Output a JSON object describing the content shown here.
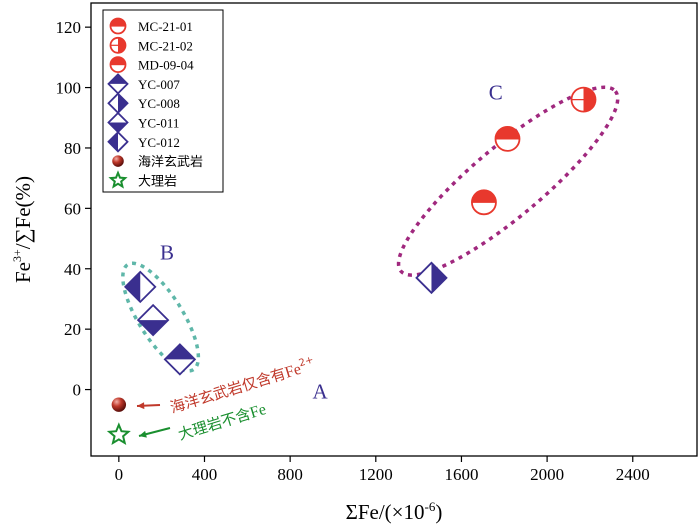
{
  "chart_data": {
    "type": "scatter",
    "title": "",
    "xlabel": "ΣFe/(×10⁻⁶)",
    "ylabel": "Fe³⁺/∑Fe(%)",
    "xlim": [
      -130,
      2700
    ],
    "ylim": [
      -22,
      128
    ],
    "xticks": [
      0,
      400,
      800,
      1200,
      1600,
      2000,
      2400
    ],
    "yticks": [
      0,
      20,
      40,
      60,
      80,
      100,
      120
    ],
    "series": [
      {
        "name": "MC-21-01",
        "marker": "circle-top-half",
        "color": "#e8382d",
        "points": [
          [
            1815,
            83
          ]
        ]
      },
      {
        "name": "MC-21-02",
        "marker": "circle-right-half",
        "color": "#e8382d",
        "points": [
          [
            2170,
            96
          ]
        ]
      },
      {
        "name": "MD-09-04",
        "marker": "circle-top-half",
        "color": "#e8382d",
        "points": [
          [
            1705,
            62
          ]
        ]
      },
      {
        "name": "YC-007",
        "marker": "diamond-top-half",
        "color": "#3a2f8f",
        "points": [
          [
            285,
            10
          ]
        ]
      },
      {
        "name": "YC-008",
        "marker": "diamond-right-half",
        "color": "#3a2f8f",
        "points": [
          [
            1460,
            37
          ]
        ]
      },
      {
        "name": "YC-011",
        "marker": "diamond-bottom-half",
        "color": "#3a2f8f",
        "points": [
          [
            160,
            23
          ]
        ]
      },
      {
        "name": "YC-012",
        "marker": "diamond-left-half",
        "color": "#3a2f8f",
        "points": [
          [
            100,
            34
          ]
        ]
      },
      {
        "name": "海洋玄武岩",
        "marker": "sphere",
        "color": "#9b1c18",
        "points": [
          [
            0,
            -5
          ]
        ]
      },
      {
        "name": "大理岩",
        "marker": "star",
        "color": "#1a8f2f",
        "points": [
          [
            0,
            -15
          ]
        ]
      }
    ],
    "group_labels": [
      {
        "text": "A",
        "x": 940,
        "y": -3,
        "color": "#3a2f8f"
      },
      {
        "text": "B",
        "x": 225,
        "y": 43,
        "color": "#3a2f8f"
      },
      {
        "text": "C",
        "x": 1760,
        "y": 96,
        "color": "#3a2f8f"
      }
    ],
    "annotations": [
      {
        "text_cn": "海洋玄武岩仅含有",
        "text_fe": "Fe",
        "sup": "2+",
        "color": "#c0392b"
      },
      {
        "text_cn": "大理岩不含",
        "text_fe": "Fe",
        "sup": "",
        "color": "#1a8f2f"
      }
    ],
    "legend_position": "top-left"
  }
}
